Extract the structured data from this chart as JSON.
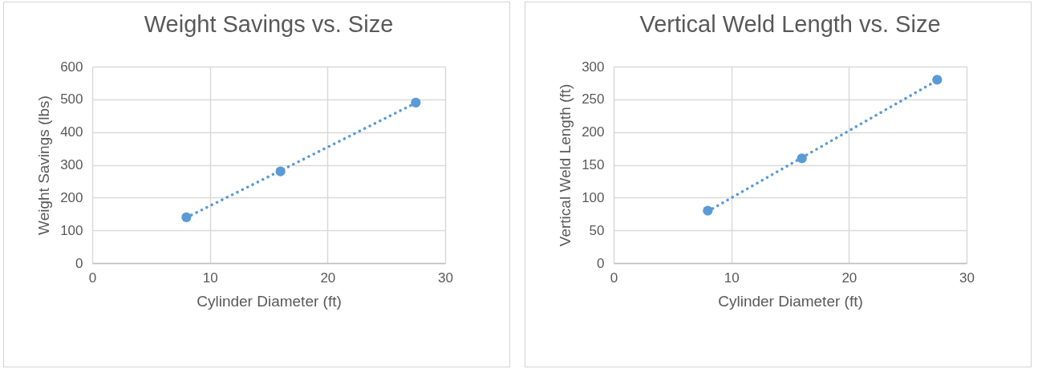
{
  "chart_data": [
    {
      "type": "scatter",
      "title": "Weight Savings vs. Size",
      "xlabel": "Cylinder Diameter (ft)",
      "ylabel": "Weight Savings (lbs)",
      "x": [
        8,
        16,
        27.5
      ],
      "xlim": [
        0,
        30
      ],
      "xticks": [
        0,
        10,
        20,
        30
      ],
      "ylim": [
        0,
        600
      ],
      "yticks": [
        0,
        100,
        200,
        300,
        400,
        500,
        600
      ],
      "grid": true,
      "series": [
        {
          "type": "scatter",
          "marker": "circle",
          "color": "#5b9bd5",
          "values": [
            140,
            280,
            490
          ]
        },
        {
          "type": "line",
          "color": "#5b9bd5",
          "line_style": "dotted",
          "values": [
            139,
            282,
            489
          ]
        }
      ]
    },
    {
      "type": "scatter",
      "title": "Vertical Weld Length vs. Size",
      "xlabel": "Cylinder Diameter (ft)",
      "ylabel": "Vertical Weld Length (ft)",
      "x": [
        8,
        16,
        27.5
      ],
      "xlim": [
        0,
        30
      ],
      "xticks": [
        0,
        10,
        20,
        30
      ],
      "ylim": [
        0,
        300
      ],
      "yticks": [
        0,
        50,
        100,
        150,
        200,
        250,
        300
      ],
      "grid": true,
      "series": [
        {
          "type": "scatter",
          "marker": "circle",
          "color": "#5b9bd5",
          "values": [
            80,
            160,
            280
          ]
        },
        {
          "type": "line",
          "color": "#5b9bd5",
          "line_style": "dotted",
          "values": [
            79,
            161,
            279
          ]
        }
      ]
    }
  ]
}
